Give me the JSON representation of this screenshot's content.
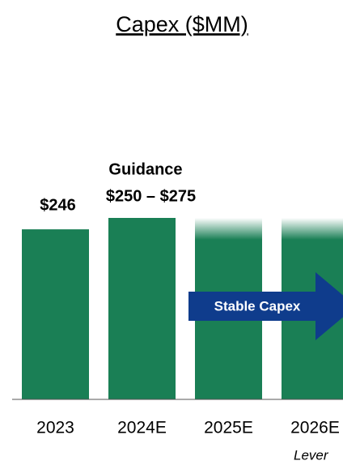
{
  "chart_data": {
    "type": "bar",
    "title": "Capex ($MM)",
    "categories": [
      "2023",
      "2024E",
      "2025E",
      "2026E"
    ],
    "values": [
      246,
      262.5,
      262.5,
      262.5
    ],
    "value_labels": [
      "$246",
      "$250 – $275",
      null,
      null
    ],
    "fade": [
      false,
      false,
      true,
      true
    ],
    "color": "#1a7f55",
    "ylim": [
      0,
      300
    ],
    "annotations": {
      "guidance": "Guidance",
      "arrow": "Stable Capex",
      "note": "Lever"
    },
    "arrow_color": "#0f3c8c"
  }
}
